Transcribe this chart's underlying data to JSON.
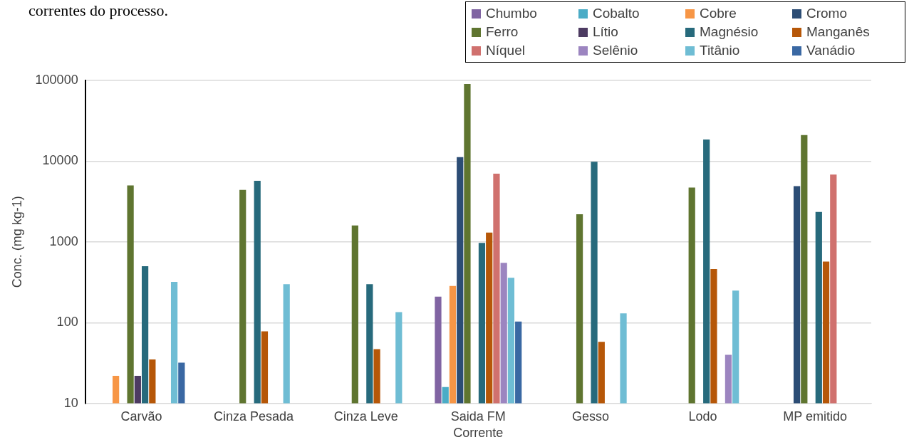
{
  "chart_data": {
    "type": "bar",
    "xlabel": "Corrente",
    "ylabel": "Conc. (mg kg-1)",
    "annotations": [
      "correntes do processo."
    ],
    "categories": [
      "Carvão",
      "Cinza Pesada",
      "Cinza Leve",
      "Saida FM",
      "Gesso",
      "Lodo",
      "MP emitido"
    ],
    "series": [
      {
        "name": "Chumbo",
        "color": "#8064a2",
        "values": [
          null,
          null,
          null,
          210,
          null,
          null,
          null
        ]
      },
      {
        "name": "Cobalto",
        "color": "#4bacc6",
        "values": [
          null,
          null,
          null,
          16,
          null,
          null,
          null
        ]
      },
      {
        "name": "Cobre",
        "color": "#f79646",
        "values": [
          22,
          null,
          null,
          285,
          null,
          null,
          null
        ]
      },
      {
        "name": "Cromo",
        "color": "#2c4d75",
        "values": [
          null,
          null,
          null,
          11200,
          null,
          null,
          4900
        ]
      },
      {
        "name": "Ferro",
        "color": "#5f7530",
        "values": [
          5000,
          4400,
          1600,
          90000,
          2200,
          4700,
          21000
        ]
      },
      {
        "name": "Lítio",
        "color": "#4d3b62",
        "values": [
          22,
          null,
          null,
          null,
          null,
          null,
          null
        ]
      },
      {
        "name": "Magnésio",
        "color": "#276a7c",
        "values": [
          500,
          5700,
          300,
          970,
          9800,
          18500,
          2350
        ]
      },
      {
        "name": "Manganês",
        "color": "#b65708",
        "values": [
          35,
          78,
          47,
          1300,
          58,
          460,
          570
        ]
      },
      {
        "name": "Níquel",
        "color": "#d0716e",
        "values": [
          null,
          null,
          null,
          7000,
          null,
          null,
          6800
        ]
      },
      {
        "name": "Selênio",
        "color": "#9c85c0",
        "values": [
          null,
          null,
          null,
          550,
          null,
          40,
          null
        ]
      },
      {
        "name": "Titânio",
        "color": "#6fbdd4",
        "values": [
          320,
          300,
          135,
          360,
          130,
          250,
          null
        ]
      },
      {
        "name": "Vanádio",
        "color": "#3a68a3",
        "values": [
          32,
          null,
          null,
          103,
          null,
          null,
          null
        ]
      }
    ],
    "ylim": [
      10,
      100000
    ],
    "yticks": [
      10,
      100,
      1000,
      10000,
      100000
    ],
    "log": true,
    "grid": "y",
    "legend": "top right"
  }
}
